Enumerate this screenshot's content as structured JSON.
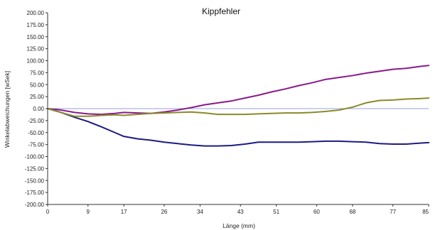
{
  "chart_data": {
    "type": "line",
    "title": "Kippfehler",
    "xlabel": "Länge (mm)",
    "ylabel": "Winkelabweichungen [wSek]",
    "xlim": [
      0,
      85
    ],
    "ylim": [
      -200,
      200
    ],
    "x_ticks": [
      "0",
      "9",
      "17",
      "26",
      "34",
      "43",
      "51",
      "60",
      "68",
      "77",
      "85"
    ],
    "y_ticks": [
      "200.00",
      "175.00",
      "150.00",
      "125.00",
      "100.00",
      "75.00",
      "50.00",
      "25.00",
      "0.00",
      "-25.00",
      "-50.00",
      "-75.00",
      "-100.00",
      "-125.00",
      "-150.00",
      "-175.00",
      "-200.00"
    ],
    "grid": false,
    "legend": "none",
    "baseline": {
      "y": 0,
      "color": "#9aa0dc"
    },
    "series": [
      {
        "color": "#1c1c82",
        "points": [
          [
            0,
            0
          ],
          [
            3,
            -8
          ],
          [
            6,
            -18
          ],
          [
            9,
            -27
          ],
          [
            12,
            -38
          ],
          [
            15,
            -50
          ],
          [
            17,
            -58
          ],
          [
            20,
            -63
          ],
          [
            23,
            -66
          ],
          [
            26,
            -70
          ],
          [
            29,
            -73
          ],
          [
            32,
            -76
          ],
          [
            35,
            -78
          ],
          [
            38,
            -78
          ],
          [
            41,
            -77
          ],
          [
            44,
            -74
          ],
          [
            47,
            -70
          ],
          [
            50,
            -70
          ],
          [
            53,
            -70
          ],
          [
            56,
            -70
          ],
          [
            59,
            -69
          ],
          [
            62,
            -68
          ],
          [
            65,
            -68
          ],
          [
            68,
            -69
          ],
          [
            71,
            -70
          ],
          [
            74,
            -73
          ],
          [
            77,
            -74
          ],
          [
            80,
            -74
          ],
          [
            83,
            -72
          ],
          [
            85,
            -71
          ]
        ]
      },
      {
        "color": "#8a1a8a",
        "points": [
          [
            0,
            0
          ],
          [
            3,
            -3
          ],
          [
            6,
            -8
          ],
          [
            9,
            -11
          ],
          [
            12,
            -12
          ],
          [
            15,
            -10
          ],
          [
            17,
            -8
          ],
          [
            20,
            -9
          ],
          [
            23,
            -10
          ],
          [
            26,
            -7
          ],
          [
            29,
            -3
          ],
          [
            32,
            2
          ],
          [
            35,
            8
          ],
          [
            38,
            12
          ],
          [
            41,
            16
          ],
          [
            44,
            22
          ],
          [
            47,
            28
          ],
          [
            50,
            35
          ],
          [
            53,
            41
          ],
          [
            56,
            48
          ],
          [
            59,
            54
          ],
          [
            62,
            61
          ],
          [
            65,
            65
          ],
          [
            68,
            69
          ],
          [
            71,
            74
          ],
          [
            74,
            78
          ],
          [
            77,
            82
          ],
          [
            80,
            84
          ],
          [
            83,
            88
          ],
          [
            85,
            90
          ]
        ]
      },
      {
        "color": "#8a8a2a",
        "points": [
          [
            0,
            0
          ],
          [
            3,
            -8
          ],
          [
            6,
            -16
          ],
          [
            9,
            -16
          ],
          [
            12,
            -14
          ],
          [
            15,
            -13
          ],
          [
            17,
            -14
          ],
          [
            20,
            -12
          ],
          [
            23,
            -10
          ],
          [
            26,
            -9
          ],
          [
            29,
            -8
          ],
          [
            32,
            -7
          ],
          [
            35,
            -9
          ],
          [
            38,
            -12
          ],
          [
            41,
            -12
          ],
          [
            44,
            -12
          ],
          [
            47,
            -11
          ],
          [
            50,
            -10
          ],
          [
            53,
            -9
          ],
          [
            56,
            -9
          ],
          [
            59,
            -8
          ],
          [
            62,
            -6
          ],
          [
            65,
            -3
          ],
          [
            68,
            3
          ],
          [
            71,
            12
          ],
          [
            74,
            17
          ],
          [
            77,
            18
          ],
          [
            80,
            20
          ],
          [
            83,
            21
          ],
          [
            85,
            22
          ]
        ]
      }
    ]
  }
}
